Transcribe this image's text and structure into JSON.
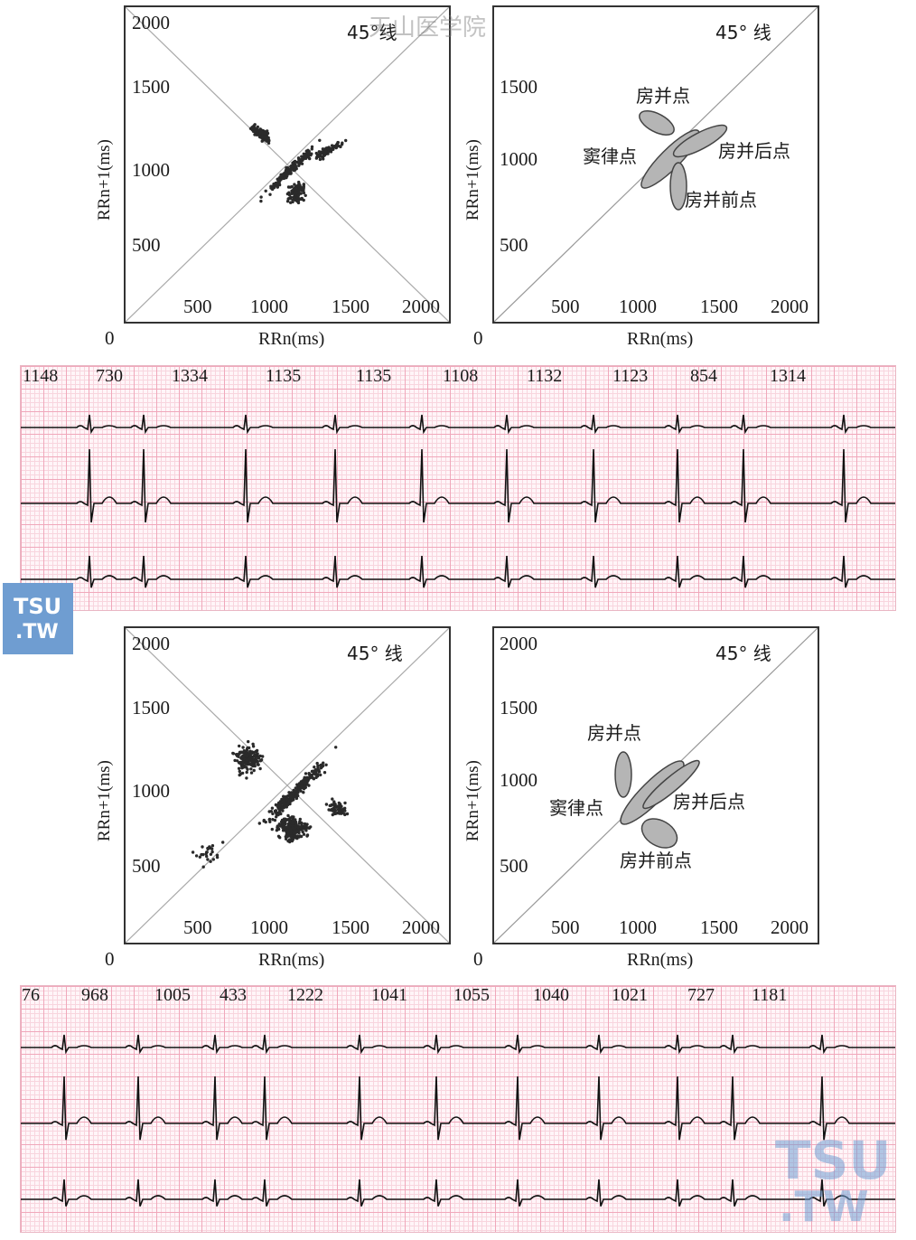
{
  "watermark_top": "天山医学院",
  "watermark_logo": {
    "line1": "TSU",
    "line2": ".TW"
  },
  "plots": {
    "top_left": {
      "y_ticks": [
        "2000",
        "1500",
        "1000",
        "500"
      ],
      "x_ticks": [
        "500",
        "1000",
        "1500",
        "2000"
      ],
      "origin": "0",
      "xlabel": "RRn(ms)",
      "ylabel": "RRn+1(ms)",
      "line_label": "45°线"
    },
    "top_right": {
      "y_ticks": [
        "1500",
        "1000",
        "500"
      ],
      "x_ticks": [
        "500",
        "1000",
        "1500",
        "2000"
      ],
      "origin": "0",
      "xlabel": "RRn(ms)",
      "ylabel": "RRn+1(ms)",
      "line_label": "45° 线",
      "regions": {
        "sinus": "窦律点",
        "pac": "房并点",
        "post": "房并后点",
        "pre": "房并前点"
      }
    },
    "bottom_left": {
      "y_ticks": [
        "2000",
        "1500",
        "1000",
        "500"
      ],
      "x_ticks": [
        "500",
        "1000",
        "1500",
        "2000"
      ],
      "origin": "0",
      "xlabel": "RRn(ms)",
      "ylabel": "RRn+1(ms)",
      "line_label": "45° 线"
    },
    "bottom_right": {
      "y_ticks": [
        "2000",
        "1500",
        "1000",
        "500"
      ],
      "x_ticks": [
        "500",
        "1000",
        "1500",
        "2000"
      ],
      "origin": "0",
      "xlabel": "RRn(ms)",
      "ylabel": "RRn+1(ms)",
      "line_label": "45° 线",
      "regions": {
        "sinus": "窦律点",
        "pac": "房并点",
        "post": "房并后点",
        "pre": "房并前点"
      }
    }
  },
  "ecg_top": {
    "rr_labels": [
      "1148",
      "730",
      "1334",
      "1135",
      "1135",
      "1108",
      "1132",
      "1123",
      "854",
      "1314"
    ]
  },
  "ecg_bottom": {
    "rr_labels": [
      "76",
      "968",
      "1005",
      "433",
      "1222",
      "1041",
      "1055",
      "1040",
      "1021",
      "727",
      "1181"
    ]
  }
}
